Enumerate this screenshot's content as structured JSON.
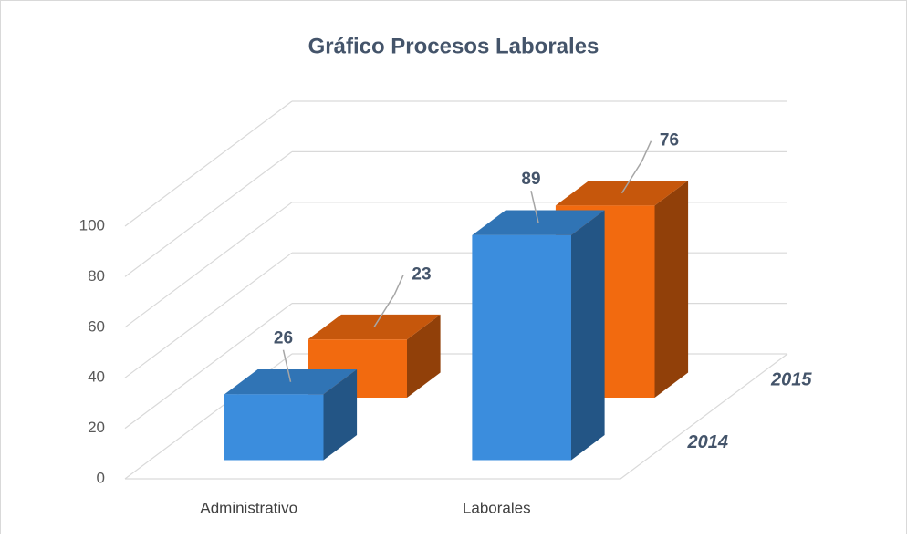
{
  "chart_data": {
    "type": "bar3d",
    "title": "Gráfico Procesos Laborales",
    "categories": [
      "Administrativo",
      "Laborales"
    ],
    "series": [
      {
        "name": "2014",
        "color": "#3b8ddd",
        "values": [
          26,
          89
        ]
      },
      {
        "name": "2015",
        "color": "#f26a0f",
        "values": [
          23,
          76
        ]
      }
    ],
    "ylim": [
      0,
      100
    ],
    "yticks": [
      0,
      20,
      40,
      60,
      80,
      100
    ],
    "grid": true
  }
}
